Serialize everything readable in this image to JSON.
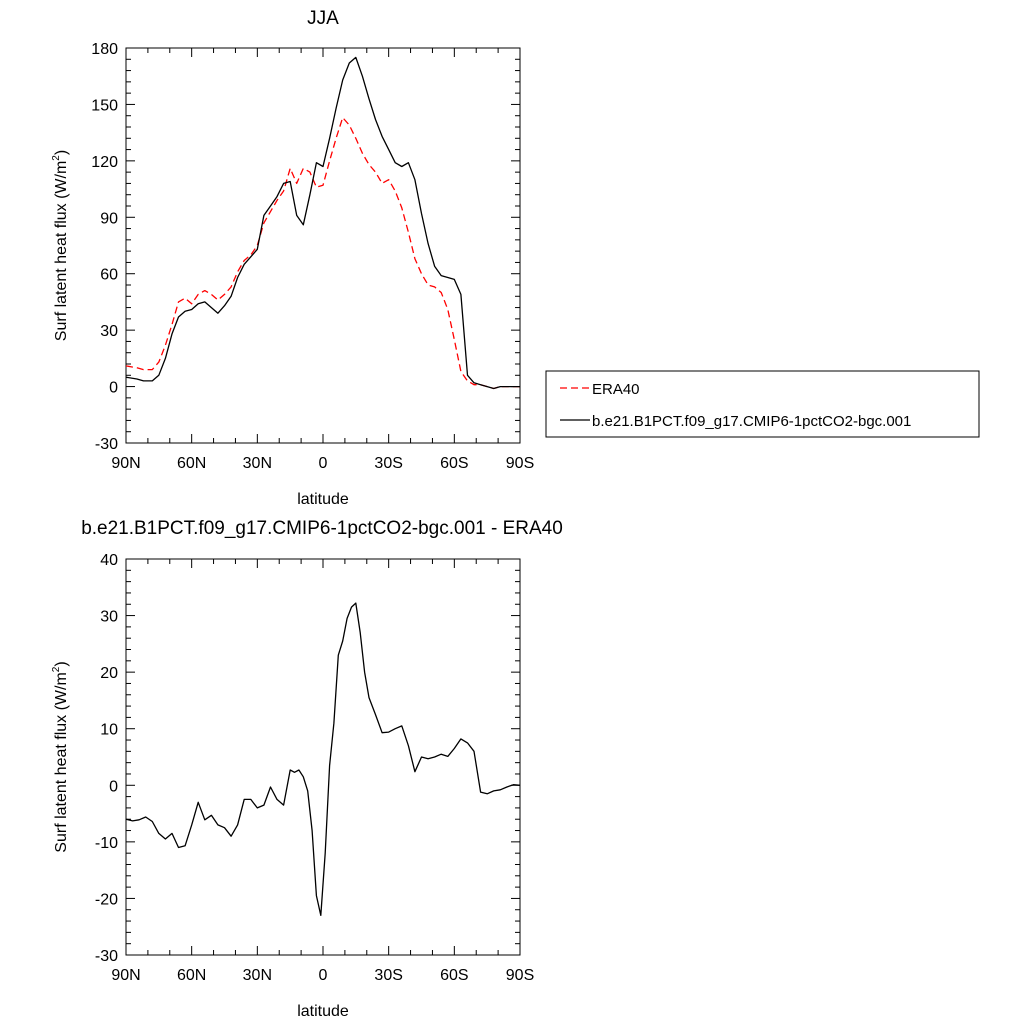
{
  "chart_data": [
    {
      "type": "line",
      "title": "JJA",
      "xlabel": "latitude",
      "ylabel": "Surf latent heat flux (W/m",
      "ylabel_sup": "2",
      "ylabel_end": ")",
      "xlim": [
        90,
        -90
      ],
      "ylim": [
        -30,
        180
      ],
      "x_ticks": [
        90,
        60,
        30,
        0,
        -30,
        -60,
        -90
      ],
      "x_tick_labels": [
        "90N",
        "60N",
        "30N",
        "0",
        "30S",
        "60S",
        "90S"
      ],
      "y_ticks": [
        -30,
        0,
        30,
        60,
        90,
        120,
        150,
        180
      ],
      "y_tick_labels": [
        "-30",
        "0",
        "30",
        "60",
        "90",
        "120",
        "150",
        "180"
      ],
      "legend_position": "right",
      "series": [
        {
          "name": "ERA40",
          "color": "#ff0000",
          "dash": "dashed",
          "x": [
            90,
            85,
            82,
            78,
            75,
            72,
            69,
            66,
            63,
            60,
            57,
            54,
            51,
            48,
            45,
            42,
            39,
            36,
            33,
            30,
            27,
            24,
            21,
            18,
            15,
            12,
            9,
            6,
            3,
            0,
            -3,
            -6,
            -9,
            -12,
            -15,
            -18,
            -21,
            -24,
            -27,
            -30,
            -33,
            -36,
            -39,
            -42,
            -45,
            -48,
            -51,
            -54,
            -57,
            -60,
            -63,
            -66,
            -69,
            -72,
            -75,
            -78,
            -81,
            -84,
            -87,
            -90
          ],
          "y": [
            11,
            10,
            9,
            9,
            13,
            22,
            33,
            45,
            47,
            44,
            49,
            51,
            49,
            46,
            49,
            53,
            61,
            67,
            70,
            75,
            87,
            93,
            99,
            104,
            116,
            108,
            116,
            114,
            106,
            107,
            120,
            132,
            143,
            139,
            132,
            124,
            118,
            114,
            108,
            110,
            104,
            95,
            82,
            68,
            60,
            54,
            53,
            50,
            41,
            25,
            8,
            3,
            1,
            1,
            0,
            -1,
            0,
            0,
            0,
            0
          ]
        },
        {
          "name": "b.e21.B1PCT.f09_g17.CMIP6-1pctCO2-bgc.001",
          "color": "#000000",
          "dash": "solid",
          "x": [
            90,
            85,
            82,
            78,
            75,
            72,
            69,
            66,
            63,
            60,
            57,
            54,
            51,
            48,
            45,
            42,
            39,
            36,
            33,
            30,
            27,
            24,
            21,
            18,
            15,
            12,
            9,
            6,
            3,
            0,
            -3,
            -6,
            -9,
            -12,
            -15,
            -18,
            -21,
            -24,
            -27,
            -30,
            -33,
            -36,
            -39,
            -42,
            -45,
            -48,
            -51,
            -54,
            -57,
            -60,
            -63,
            -66,
            -69,
            -72,
            -75,
            -78,
            -81,
            -84,
            -87,
            -90
          ],
          "y": [
            5,
            4,
            3,
            3,
            6,
            15,
            28,
            37,
            40,
            41,
            44,
            45,
            42,
            39,
            43,
            48,
            58,
            65,
            69,
            73,
            91,
            96,
            101,
            108,
            109,
            91,
            86,
            102,
            119,
            117,
            132,
            148,
            163,
            172,
            175,
            165,
            153,
            142,
            133,
            126,
            119,
            117,
            119,
            110,
            92,
            76,
            64,
            59,
            58,
            57,
            49,
            6,
            2,
            1,
            0,
            -1,
            0,
            0,
            0,
            0
          ]
        }
      ]
    },
    {
      "type": "line",
      "title": "b.e21.B1PCT.f09_g17.CMIP6-1pctCO2-bgc.001 - ERA40",
      "xlabel": "latitude",
      "ylabel": "Surf latent heat flux (W/m",
      "ylabel_sup": "2",
      "ylabel_end": ")",
      "xlim": [
        90,
        -90
      ],
      "ylim": [
        -30,
        40
      ],
      "x_ticks": [
        90,
        60,
        30,
        0,
        -30,
        -60,
        -90
      ],
      "x_tick_labels": [
        "90N",
        "60N",
        "30N",
        "0",
        "30S",
        "60S",
        "90S"
      ],
      "y_ticks": [
        -30,
        -20,
        -10,
        0,
        10,
        20,
        30,
        40
      ],
      "y_tick_labels": [
        "-30",
        "-20",
        "-10",
        "0",
        "10",
        "20",
        "30",
        "40"
      ],
      "series": [
        {
          "color": "#000000",
          "dash": "solid",
          "x": [
            90,
            87,
            84,
            81,
            78,
            75,
            72,
            69,
            66,
            63,
            60,
            57,
            54,
            51,
            48,
            45,
            42,
            39,
            36,
            33,
            30,
            27,
            24,
            21,
            18,
            15,
            13,
            11,
            9,
            7,
            5,
            3,
            1,
            -1,
            -3,
            -5,
            -7,
            -9,
            -11,
            -13,
            -15,
            -17,
            -19,
            -21,
            -24,
            -27,
            -30,
            -33,
            -36,
            -39,
            -42,
            -45,
            -48,
            -51,
            -54,
            -57,
            -60,
            -63,
            -66,
            -69,
            -72,
            -75,
            -78,
            -81,
            -84,
            -87,
            -90
          ],
          "y": [
            -6,
            -6.3,
            -6.1,
            -5.6,
            -6.4,
            -8.5,
            -9.5,
            -8.5,
            -11,
            -10.7,
            -7,
            -3,
            -6.1,
            -5.3,
            -7,
            -7.5,
            -9,
            -7,
            -2.5,
            -2.5,
            -4,
            -3.5,
            -0.3,
            -2.5,
            -3.5,
            2.7,
            2.3,
            2.7,
            1.5,
            -1,
            -8,
            -19.5,
            -23,
            -12,
            3.5,
            11,
            23,
            25.5,
            29.5,
            31.5,
            32.2,
            27,
            20,
            15.5,
            12.5,
            9.3,
            9.4,
            10,
            10.5,
            7,
            2.4,
            5,
            4.7,
            5,
            5.5,
            5.1,
            6.5,
            8.2,
            7.5,
            6,
            -1.2,
            -1.5,
            -1,
            -0.8,
            -0.3,
            0.1,
            0
          ]
        }
      ]
    }
  ]
}
